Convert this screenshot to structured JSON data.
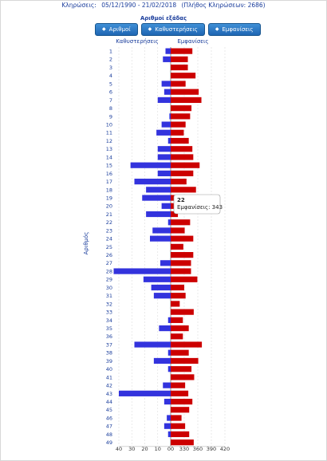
{
  "header": {
    "period_label": "Κληρώσεις:",
    "period_range": "05/12/1990 - 21/02/2018",
    "draws_count": "(Πλήθος Κληρώσεων: 2686)"
  },
  "sort": {
    "title": "Αριθμοί εξάδας",
    "buttons": [
      {
        "label": "Αριθμοί",
        "icon": "sort-arrows-icon"
      },
      {
        "label": "Καθυστερήσεις",
        "icon": "sort-arrows-icon"
      },
      {
        "label": "Εμφανίσεις",
        "icon": "sort-arrows-icon"
      }
    ]
  },
  "tooltip": {
    "number": "22",
    "text": "Εμφανίσεις: 343"
  },
  "chart_data": {
    "type": "bar",
    "orientation": "horizontal-diverging",
    "legend_left": "Καθυστερήσεις",
    "legend_right": "Εμφανίσεις",
    "ylabel": "Αριθμός",
    "categories": [
      "1",
      "2",
      "3",
      "4",
      "5",
      "6",
      "7",
      "8",
      "9",
      "10",
      "11",
      "12",
      "13",
      "14",
      "15",
      "16",
      "17",
      "18",
      "19",
      "20",
      "21",
      "22",
      "23",
      "24",
      "25",
      "26",
      "27",
      "28",
      "29",
      "30",
      "31",
      "32",
      "33",
      "34",
      "35",
      "36",
      "37",
      "38",
      "39",
      "40",
      "41",
      "42",
      "43",
      "44",
      "45",
      "46",
      "47",
      "48",
      "49"
    ],
    "x_ticks": [
      "40",
      "30",
      "20",
      "10",
      "00",
      "330",
      "360",
      "390",
      "420"
    ],
    "left_axis": {
      "min": 0,
      "max": 40
    },
    "right_axis": {
      "min": 300,
      "max": 420
    },
    "colors": {
      "left": "#3333dd",
      "right": "#cc0000"
    },
    "series": [
      {
        "name": "Καθυστερήσεις",
        "values": [
          4,
          6,
          0,
          0,
          7,
          5,
          10,
          0,
          1,
          7,
          11,
          2,
          10,
          10,
          31,
          10,
          28,
          19,
          22,
          7,
          19,
          2,
          14,
          16,
          0,
          0,
          8,
          44,
          21,
          15,
          13,
          0,
          0,
          2,
          9,
          0,
          28,
          2,
          13,
          2,
          0,
          6,
          40,
          5,
          0,
          3,
          5,
          2,
          0
        ]
      },
      {
        "name": "Εμφανίσεις",
        "values": [
          348,
          338,
          338,
          355,
          333,
          362,
          368,
          346,
          343,
          333,
          329,
          340,
          348,
          350,
          364,
          350,
          335,
          356,
          322,
          345,
          316,
          343,
          331,
          350,
          328,
          350,
          345,
          345,
          359,
          330,
          333,
          320,
          351,
          327,
          340,
          327,
          369,
          340,
          361,
          346,
          352,
          332,
          339,
          348,
          341,
          324,
          332,
          341,
          351
        ]
      }
    ]
  }
}
